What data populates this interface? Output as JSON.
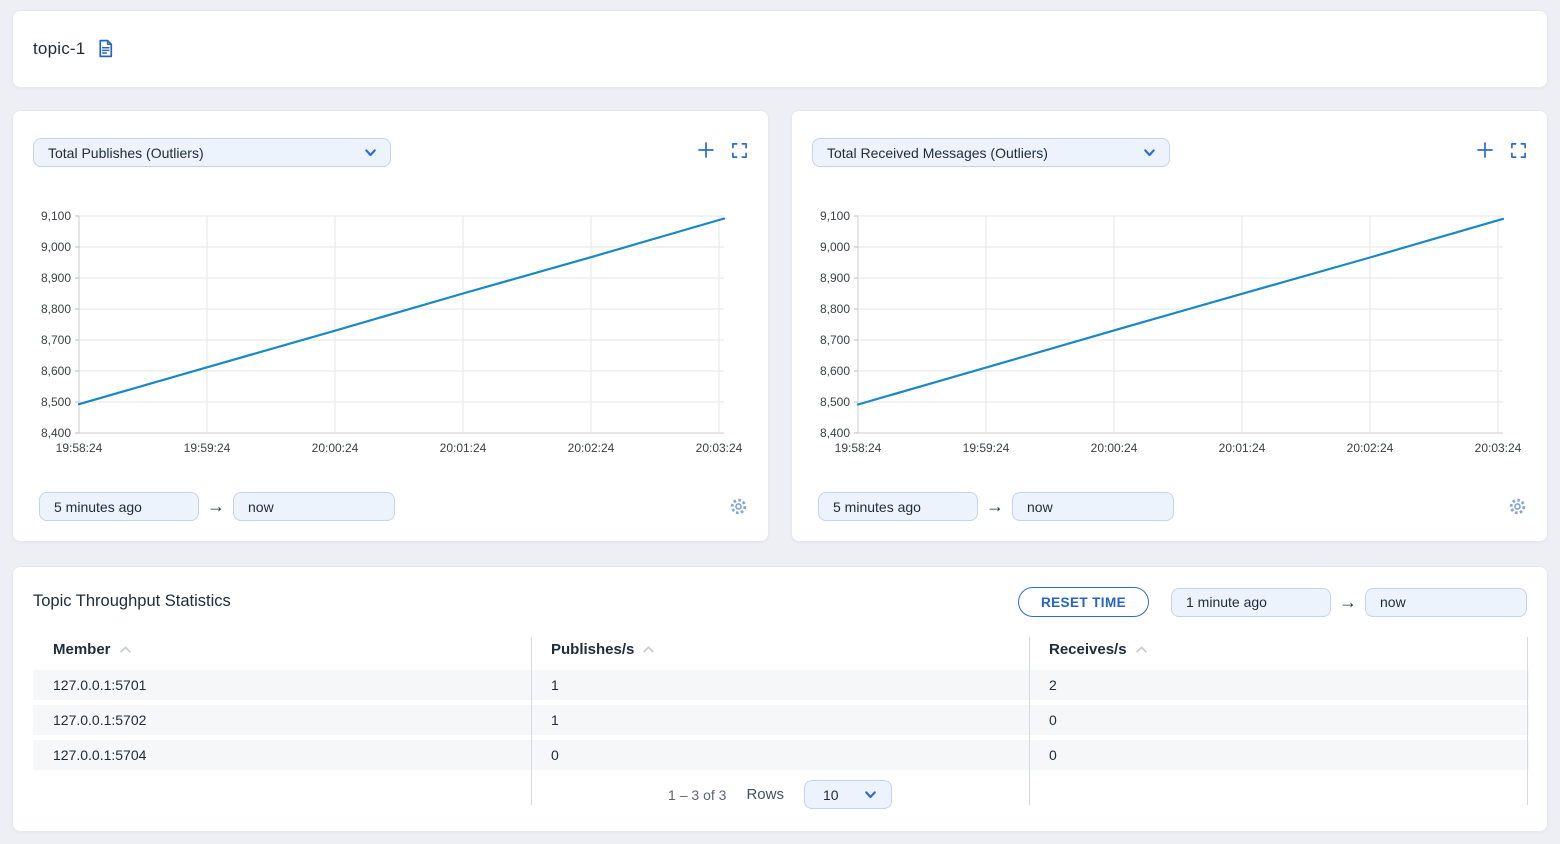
{
  "header": {
    "title": "topic-1",
    "icon": "document-icon"
  },
  "glyphs": {
    "arrow": "→"
  },
  "colors": {
    "accent_blue": "#2e6bd0",
    "line_blue": "#1789c6",
    "pill_bg": "#edf3fc",
    "pill_border": "#c3d4ec",
    "page_bg": "#edeff4"
  },
  "charts": [
    {
      "metric_selector": "Total Publishes (Outliers)",
      "time_from": "5 minutes ago",
      "time_to": "now"
    },
    {
      "metric_selector": "Total Received Messages (Outliers)",
      "time_from": "5 minutes ago",
      "time_to": "now"
    }
  ],
  "chart_data": [
    {
      "type": "line",
      "title": "Total Publishes (Outliers)",
      "x": [
        "19:58:24",
        "19:59:24",
        "20:00:24",
        "20:01:24",
        "20:02:24",
        "20:03:24"
      ],
      "values": [
        8493,
        8612,
        8730,
        8850,
        8967,
        9087
      ],
      "ylim": [
        8400,
        9100
      ],
      "y_tick_step": 100,
      "y_tick_labels": [
        "8,400",
        "8,500",
        "8,600",
        "8,700",
        "8,800",
        "8,900",
        "9,000",
        "9,100"
      ],
      "line_color": "#1789c6",
      "grid": true,
      "legend": "none",
      "xlabel": "",
      "ylabel": ""
    },
    {
      "type": "line",
      "title": "Total Received Messages (Outliers)",
      "x": [
        "19:58:24",
        "19:59:24",
        "20:00:24",
        "20:01:24",
        "20:02:24",
        "20:03:24"
      ],
      "values": [
        8492,
        8611,
        8731,
        8849,
        8966,
        9086
      ],
      "ylim": [
        8400,
        9100
      ],
      "y_tick_step": 100,
      "y_tick_labels": [
        "8,400",
        "8,500",
        "8,600",
        "8,700",
        "8,800",
        "8,900",
        "9,000",
        "9,100"
      ],
      "line_color": "#1789c6",
      "grid": true,
      "legend": "none",
      "xlabel": "",
      "ylabel": ""
    }
  ],
  "stats_panel": {
    "title": "Topic Throughput Statistics",
    "reset_button": "RESET TIME",
    "time_from": "1 minute ago",
    "time_to": "now",
    "table": {
      "columns": [
        "Member",
        "Publishes/s",
        "Receives/s"
      ],
      "rows": [
        [
          "127.0.0.1:5701",
          "1",
          "2"
        ],
        [
          "127.0.0.1:5702",
          "1",
          "0"
        ],
        [
          "127.0.0.1:5704",
          "0",
          "0"
        ]
      ]
    },
    "pagination": {
      "range": "1 – 3 of 3",
      "rows_label": "Rows",
      "rows_per_page": "10"
    }
  }
}
